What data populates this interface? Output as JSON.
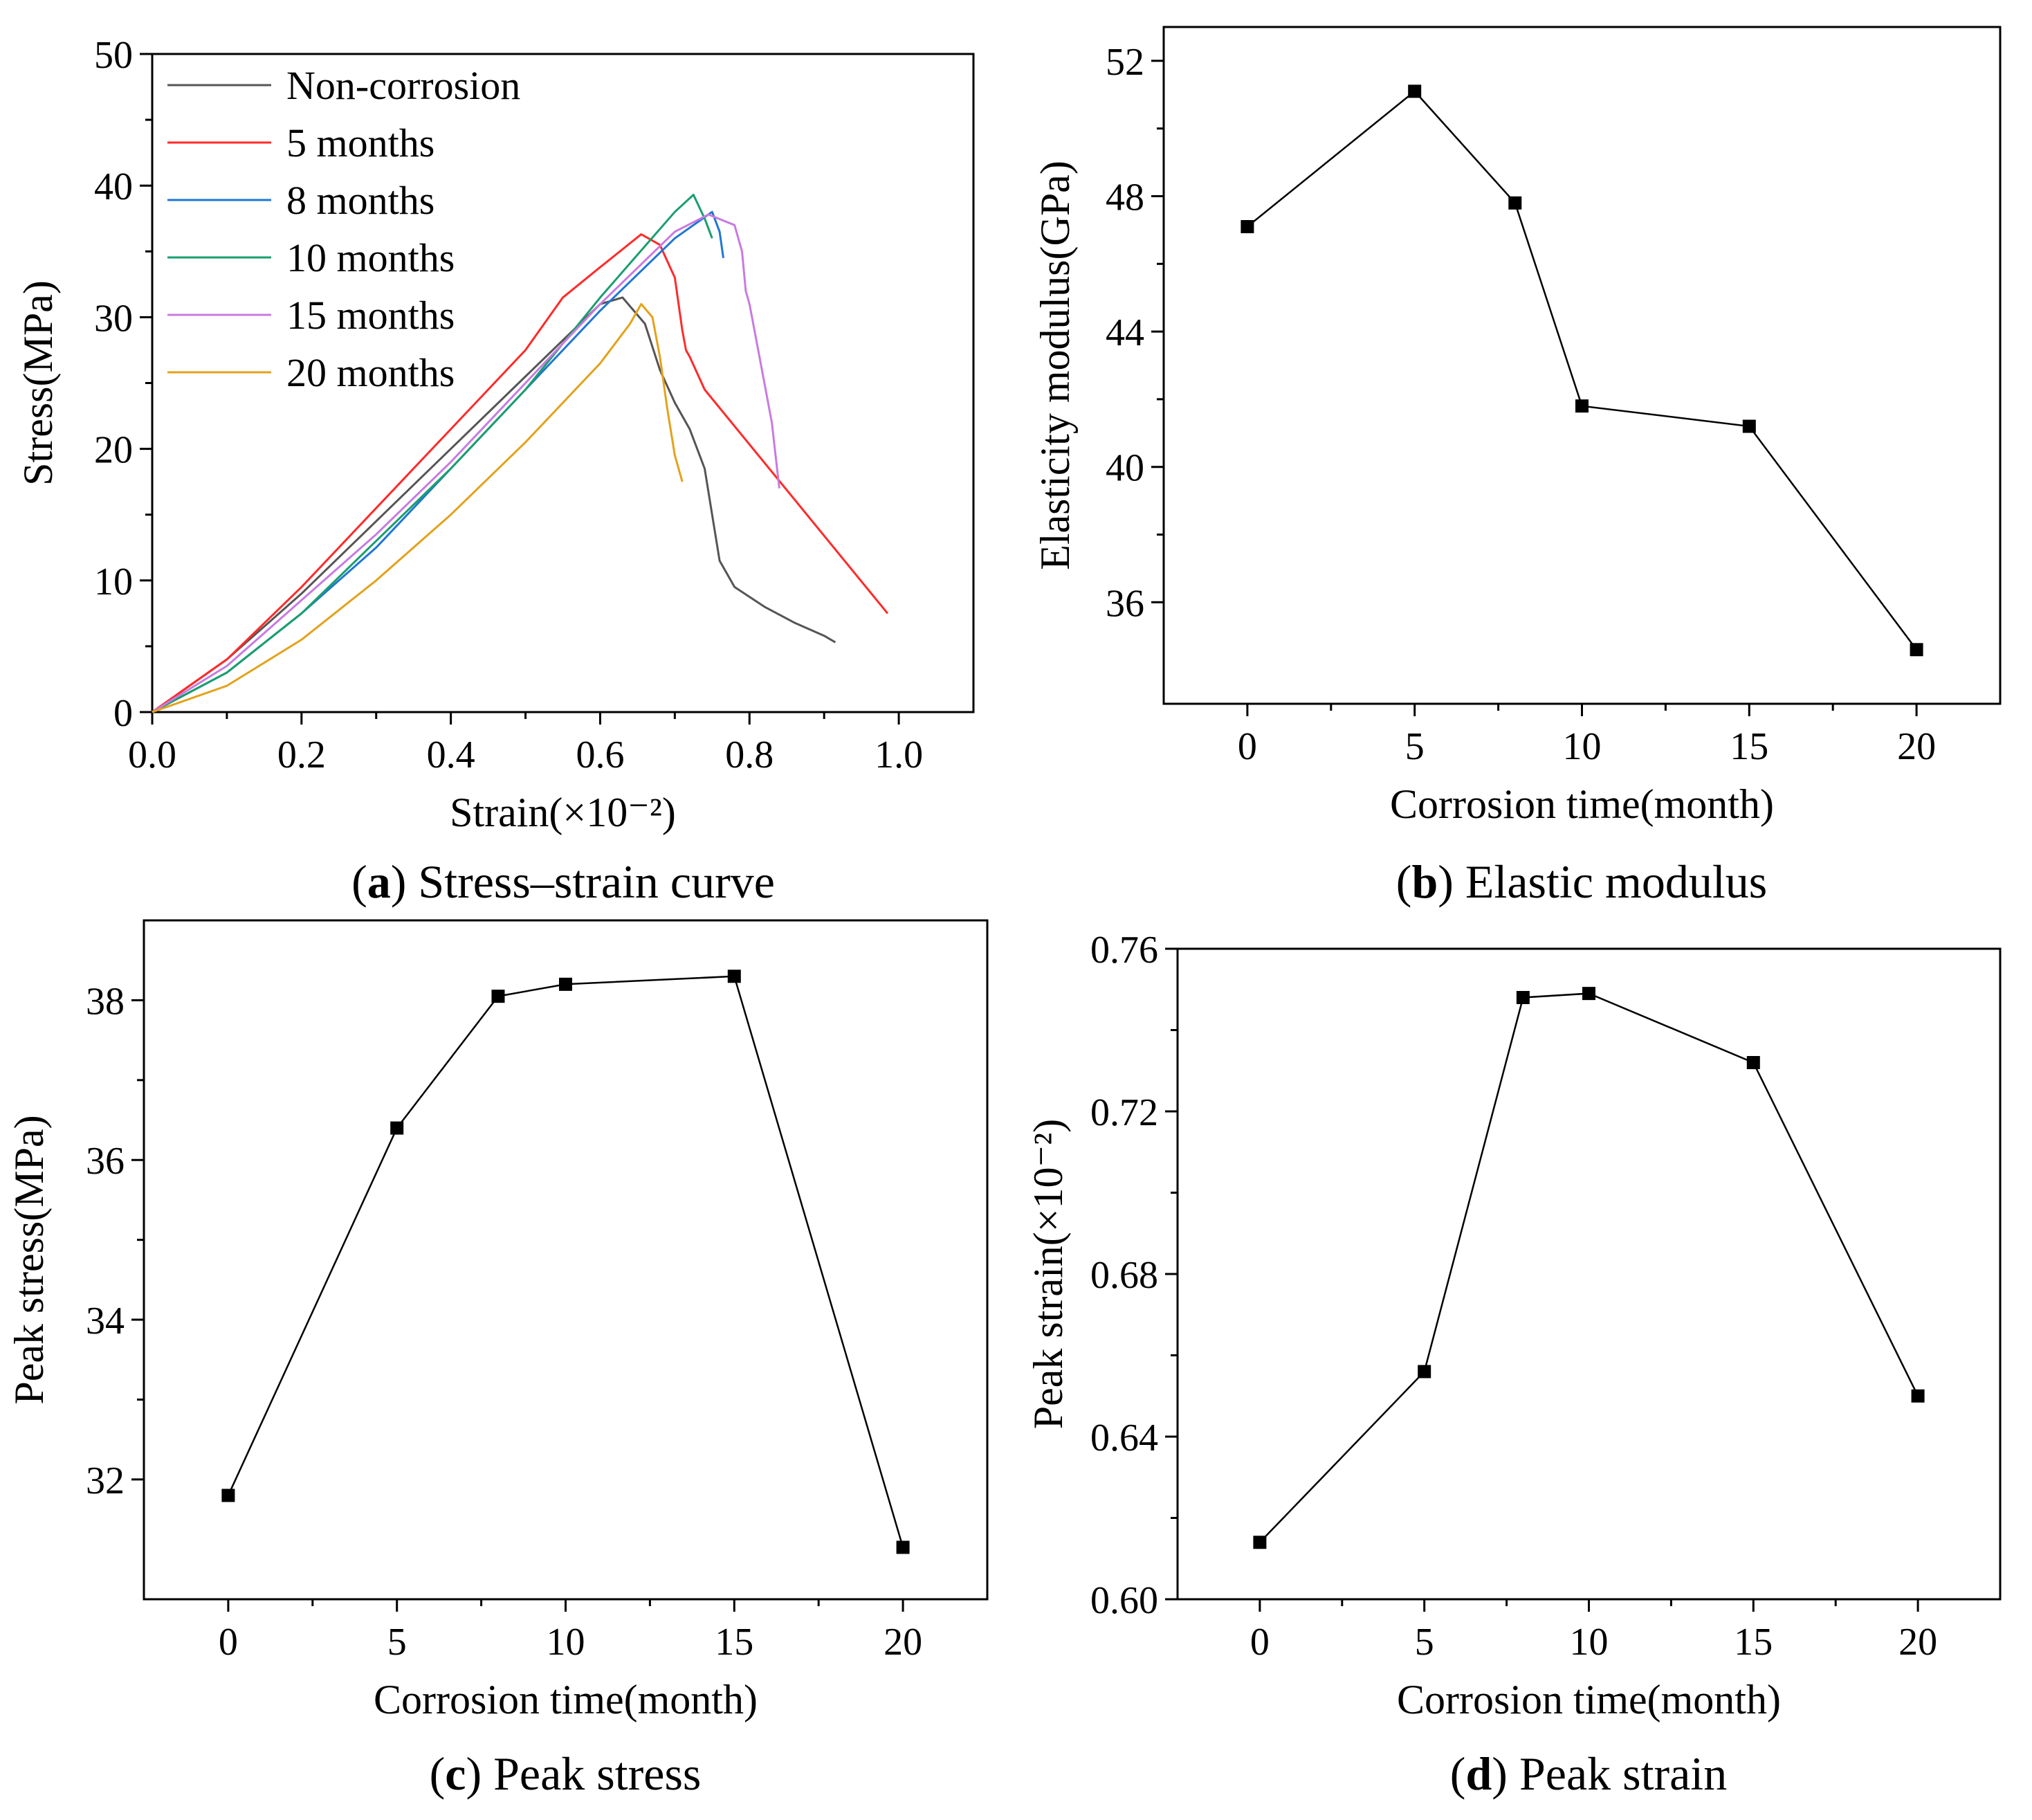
{
  "figure": {
    "panels": [
      {
        "id": "a",
        "caption_letter": "a",
        "caption_text": " Stress–strain curve"
      },
      {
        "id": "b",
        "caption_letter": "b",
        "caption_text": " Elastic modulus"
      },
      {
        "id": "c",
        "caption_letter": "c",
        "caption_text": " Peak stress"
      },
      {
        "id": "d",
        "caption_letter": "d",
        "caption_text": " Peak strain"
      }
    ]
  },
  "chart_data": [
    {
      "panel": "a",
      "type": "line",
      "title": "Stress–strain curve",
      "xlabel": "Strain(×10⁻²)",
      "ylabel": "Stress(MPa)",
      "xlim": [
        0.0,
        1.1
      ],
      "ylim": [
        0,
        50
      ],
      "xticks": [
        0.0,
        0.2,
        0.4,
        0.6,
        0.8,
        1.0
      ],
      "xtick_labels": [
        "0.0",
        "0.2",
        "0.4",
        "0.6",
        "0.8",
        "1.0"
      ],
      "yticks": [
        0,
        10,
        20,
        30,
        40,
        50
      ],
      "ytick_labels": [
        "0",
        "10",
        "20",
        "30",
        "40",
        "50"
      ],
      "legend_position": "top-left",
      "series": [
        {
          "name": "Non-corrosion",
          "color": "#555555",
          "x": [
            0.0,
            0.1,
            0.2,
            0.3,
            0.4,
            0.5,
            0.6,
            0.63,
            0.66,
            0.68,
            0.7,
            0.72,
            0.74,
            0.75,
            0.76,
            0.78,
            0.82,
            0.86,
            0.9,
            0.915
          ],
          "y": [
            0.0,
            4.0,
            9.0,
            14.5,
            20.0,
            25.5,
            31.0,
            31.5,
            29.5,
            26.0,
            23.5,
            21.5,
            18.5,
            15.0,
            11.5,
            9.5,
            8.0,
            6.8,
            5.8,
            5.3
          ]
        },
        {
          "name": "5 months",
          "color": "#ff2a2a",
          "x": [
            0.0,
            0.1,
            0.2,
            0.3,
            0.4,
            0.5,
            0.55,
            0.6,
            0.655,
            0.68,
            0.7,
            0.71,
            0.715,
            0.72,
            0.74,
            0.985
          ],
          "y": [
            0.0,
            4.0,
            9.5,
            15.5,
            21.5,
            27.5,
            31.5,
            33.8,
            36.3,
            35.5,
            33.0,
            29.0,
            27.5,
            27.0,
            24.5,
            7.5
          ]
        },
        {
          "name": "8 months",
          "color": "#1f77d4",
          "x": [
            0.0,
            0.1,
            0.2,
            0.3,
            0.4,
            0.5,
            0.6,
            0.7,
            0.75,
            0.76,
            0.765
          ],
          "y": [
            0.0,
            3.0,
            7.5,
            12.5,
            18.5,
            24.5,
            30.5,
            36.0,
            38.0,
            36.5,
            34.5
          ]
        },
        {
          "name": "10 months",
          "color": "#1a9e6e",
          "x": [
            0.0,
            0.1,
            0.2,
            0.3,
            0.4,
            0.5,
            0.6,
            0.7,
            0.725,
            0.74,
            0.75
          ],
          "y": [
            0.0,
            3.0,
            7.5,
            13.0,
            18.5,
            24.5,
            31.5,
            38.0,
            39.3,
            37.5,
            36.0
          ]
        },
        {
          "name": "15 months",
          "color": "#c77be0",
          "x": [
            0.0,
            0.1,
            0.2,
            0.3,
            0.4,
            0.5,
            0.6,
            0.7,
            0.745,
            0.78,
            0.79,
            0.795,
            0.8,
            0.81,
            0.83,
            0.84
          ],
          "y": [
            0.0,
            3.5,
            8.5,
            13.5,
            19.0,
            25.0,
            31.0,
            36.5,
            37.8,
            37.0,
            35.0,
            32.0,
            31.0,
            28.0,
            22.0,
            17.0
          ]
        },
        {
          "name": "20 months",
          "color": "#e3a21a",
          "x": [
            0.0,
            0.1,
            0.2,
            0.3,
            0.4,
            0.5,
            0.6,
            0.64,
            0.655,
            0.67,
            0.68,
            0.69,
            0.7,
            0.705,
            0.71
          ],
          "y": [
            0.0,
            2.0,
            5.5,
            10.0,
            15.0,
            20.5,
            26.5,
            29.5,
            31.0,
            30.0,
            27.0,
            23.0,
            19.5,
            18.5,
            17.5
          ]
        }
      ]
    },
    {
      "panel": "b",
      "type": "line",
      "title": "Elastic modulus",
      "xlabel": "Corrosion time(month)",
      "ylabel": "Elasticity modulus(GPa)",
      "xlim": [
        -2.5,
        22.5
      ],
      "ylim": [
        33,
        53
      ],
      "xticks": [
        0,
        5,
        10,
        15,
        20
      ],
      "xtick_labels": [
        "0",
        "5",
        "10",
        "15",
        "20"
      ],
      "yticks": [
        36,
        40,
        44,
        48,
        52
      ],
      "ytick_labels": [
        "36",
        "40",
        "44",
        "48",
        "52"
      ],
      "x": [
        0,
        5,
        8,
        10,
        15,
        20
      ],
      "y": [
        47.1,
        51.1,
        47.8,
        41.8,
        41.2,
        34.6
      ]
    },
    {
      "panel": "c",
      "type": "line",
      "title": "Peak stress",
      "xlabel": "Corrosion time(month)",
      "ylabel": "Peak stress(MPa)",
      "xlim": [
        -2.5,
        22.5
      ],
      "ylim": [
        30.5,
        39.0
      ],
      "xticks": [
        0,
        5,
        10,
        15,
        20
      ],
      "xtick_labels": [
        "0",
        "5",
        "10",
        "15",
        "20"
      ],
      "yticks": [
        32,
        34,
        36,
        38
      ],
      "ytick_labels": [
        "32",
        "34",
        "36",
        "38"
      ],
      "x": [
        0,
        5,
        8,
        10,
        15,
        20
      ],
      "y": [
        31.8,
        36.4,
        38.05,
        38.2,
        38.3,
        31.15
      ]
    },
    {
      "panel": "d",
      "type": "line",
      "title": "Peak strain",
      "xlabel": "Corrosion time(month)",
      "ylabel": "Peak strain(×10⁻²)",
      "xlim": [
        -2.5,
        22.5
      ],
      "ylim": [
        0.6,
        0.76
      ],
      "xticks": [
        0,
        5,
        10,
        15,
        20
      ],
      "xtick_labels": [
        "0",
        "5",
        "10",
        "15",
        "20"
      ],
      "yticks": [
        0.6,
        0.64,
        0.68,
        0.72,
        0.76
      ],
      "ytick_labels": [
        "0.60",
        "0.64",
        "0.68",
        "0.72",
        "0.76"
      ],
      "x": [
        0,
        5,
        8,
        10,
        15,
        20
      ],
      "y": [
        0.614,
        0.656,
        0.748,
        0.749,
        0.732,
        0.65
      ]
    }
  ]
}
